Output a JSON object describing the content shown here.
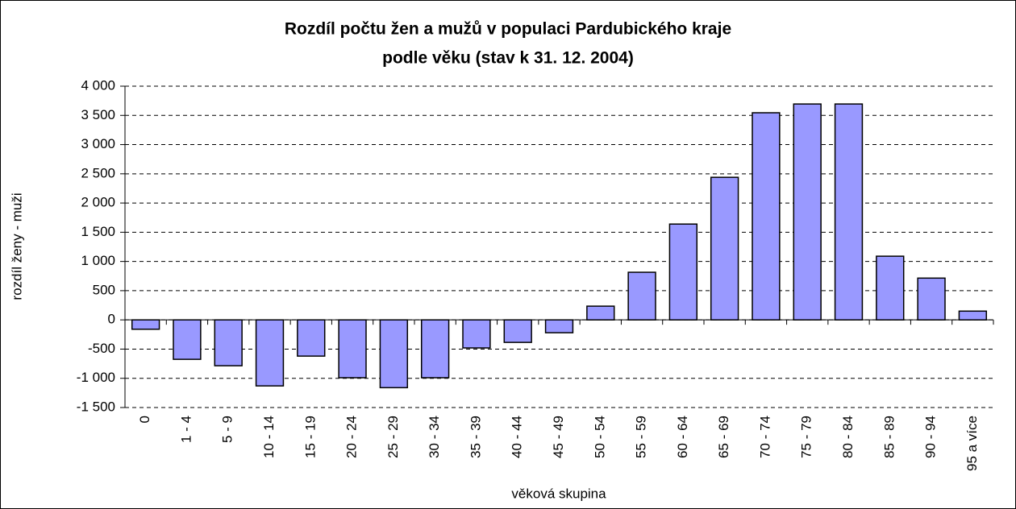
{
  "chart_data": {
    "type": "bar",
    "title": "Rozdíl počtu žen a mužů v populaci Pardubického kraje",
    "subtitle": "podle věku (stav k 31. 12. 2004)",
    "x_label": "věková skupina",
    "y_label": "rozdíl ženy - muži",
    "categories": [
      "0",
      "1 - 4",
      "5 - 9",
      "10 - 14",
      "15 - 19",
      "20 - 24",
      "25 - 29",
      "30 - 34",
      "35 - 39",
      "40 - 44",
      "45 - 49",
      "50 - 54",
      "55 - 59",
      "60 - 64",
      "65 - 69",
      "70 - 74",
      "75 - 79",
      "80 - 84",
      "85 - 89",
      "90 - 94",
      "95 a více"
    ],
    "values": [
      -160,
      -675,
      -785,
      -1130,
      -620,
      -990,
      -1160,
      -990,
      -480,
      -385,
      -220,
      235,
      815,
      1640,
      2440,
      3545,
      3695,
      3695,
      1090,
      715,
      150
    ],
    "color": "#9999ff",
    "ylim": [
      -1500,
      4000
    ],
    "yticks": [
      {
        "value": -1500,
        "label": "-1 500"
      },
      {
        "value": -1000,
        "label": "-1 000"
      },
      -500,
      0,
      500,
      {
        "value": 1000,
        "label": "1 000"
      },
      {
        "value": 1500,
        "label": "1 500"
      },
      {
        "value": 2000,
        "label": "2 000"
      },
      {
        "value": 2500,
        "label": "2 500"
      },
      {
        "value": 3000,
        "label": "3 000"
      },
      {
        "value": 3500,
        "label": "3 500"
      },
      {
        "value": 4000,
        "label": "4 000"
      }
    ],
    "grid": true
  }
}
